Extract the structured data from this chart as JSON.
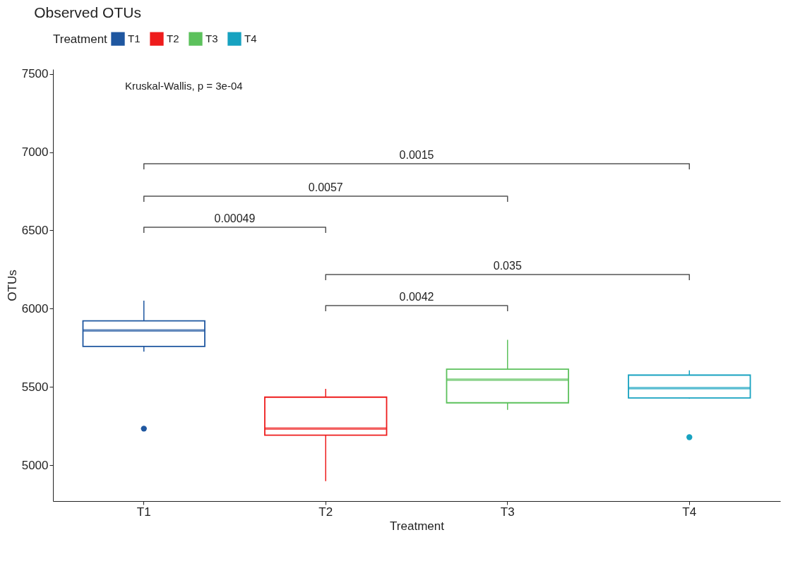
{
  "chart_data": {
    "type": "box",
    "title": "Observed OTUs",
    "xlabel": "Treatment",
    "ylabel": "OTUs",
    "legend_title": "Treatment",
    "legend": "top",
    "categories": [
      "T1",
      "T2",
      "T3",
      "T4"
    ],
    "series": [
      {
        "name": "T1",
        "color": "#1f57a0",
        "boxes": [
          {
            "low": 5725,
            "q1": 5758,
            "median": 5860,
            "q3": 5922,
            "high": 6051,
            "outliers": [
              5233
            ]
          },
          null,
          null,
          null
        ]
      },
      {
        "name": "T2",
        "color": "#ee1c1c",
        "boxes": [
          null,
          {
            "low": 4897,
            "q1": 5191,
            "median": 5233,
            "q3": 5434,
            "high": 5487
          },
          null,
          null
        ]
      },
      {
        "name": "T3",
        "color": "#5cc15c",
        "boxes": [
          null,
          null,
          {
            "low": 5353,
            "q1": 5398,
            "median": 5546,
            "q3": 5613,
            "high": 5801
          },
          null
        ]
      },
      {
        "name": "T4",
        "color": "#17a2c0",
        "boxes": [
          null,
          null,
          null,
          {
            "low": 5425,
            "q1": 5429,
            "median": 5492,
            "q3": 5575,
            "high": 5605,
            "outliers": [
              5178
            ]
          }
        ]
      }
    ],
    "ylim": [
      4770,
      7530
    ],
    "yticks": [
      5000,
      5500,
      6000,
      6500,
      7000,
      7500
    ],
    "grid": false,
    "annotations": [
      "Kruskal-Wallis, p = 3e-04",
      "0.0015",
      "0.0057",
      "0.00049",
      "0.035",
      "0.0042"
    ]
  }
}
